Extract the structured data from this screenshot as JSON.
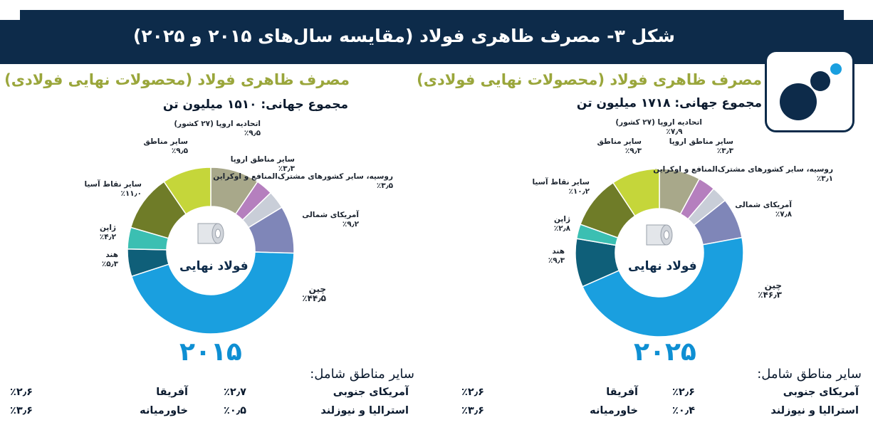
{
  "header": {
    "title": "شکل ۳- مصرف ظاهری فولاد (مقایسه سال‌های ۲۰۱۵ و ۲۰۲۵)"
  },
  "colors": {
    "navy": "#0d2b4a",
    "olive_title": "#9aa63b",
    "year_blue": "#0e8fd3"
  },
  "chart_data": [
    {
      "type": "pie",
      "variant": "donut",
      "year_label": "۲۰۲۵",
      "title": "مصرف ظاهری فولاد (محصولات نهایی فولادی)",
      "subtitle": "مجموع جهانی: ۱۷۱۸ میلیون تن",
      "center_label": "فولاد نهایی",
      "slices": [
        {
          "name": "اتحادیه اروپا (۲۷ کشور)",
          "value": 7.9,
          "label": "٪۷٫۹",
          "color": "#a8a88a"
        },
        {
          "name": "سایر مناطق اروپا",
          "value": 3.3,
          "label": "٪۳٫۳",
          "color": "#b57fbe"
        },
        {
          "name": "روسیه، سایر کشورهای مشترک‌المنافع و اوکراین",
          "value": 3.1,
          "label": "٪۳٫۱",
          "color": "#c9ced8"
        },
        {
          "name": "آمریکای شمالی",
          "value": 7.8,
          "label": "٪۷٫۸",
          "color": "#7f86b8"
        },
        {
          "name": "چین",
          "value": 46.3,
          "label": "٪۴۶٫۳",
          "color": "#1a9fdf"
        },
        {
          "name": "هند",
          "value": 9.3,
          "label": "٪۹٫۳",
          "color": "#0f5f79"
        },
        {
          "name": "ژاپن",
          "value": 2.8,
          "label": "٪۲٫۸",
          "color": "#3bbfb2"
        },
        {
          "name": "سایر نقاط آسیا",
          "value": 10.2,
          "label": "٪۱۰٫۲",
          "color": "#6f7c28"
        },
        {
          "name": "سایر مناطق",
          "value": 9.3,
          "label": "٪۹٫۳",
          "color": "#c5d63a"
        }
      ],
      "other_regions": {
        "heading": "سایر مناطق شامل:",
        "rows": [
          {
            "region_a": "آمریکای جنوبی",
            "value_a": "٪۲٫۶",
            "region_b": "آفریقا",
            "value_b": "٪۲٫۶"
          },
          {
            "region_a": "استرالیا و نیوزلند",
            "value_a": "٪۰٫۴",
            "region_b": "خاورمیانه",
            "value_b": "٪۳٫۶"
          }
        ]
      }
    },
    {
      "type": "pie",
      "variant": "donut",
      "year_label": "۲۰۱۵",
      "title": "مصرف ظاهری فولاد (محصولات نهایی فولادی)",
      "subtitle": "مجموع جهانی: ۱۵۱۰ میلیون تن",
      "center_label": "فولاد نهایی",
      "slices": [
        {
          "name": "اتحادیه اروپا (۲۷ کشور)",
          "value": 9.5,
          "label": "٪۹٫۵",
          "color": "#a8a88a"
        },
        {
          "name": "سایر مناطق اروپا",
          "value": 3.3,
          "label": "٪۳٫۳",
          "color": "#b57fbe"
        },
        {
          "name": "روسیه، سایر کشورهای مشترک‌المنافع و اوکراین",
          "value": 3.5,
          "label": "٪۳٫۵",
          "color": "#c9ced8"
        },
        {
          "name": "آمریکای شمالی",
          "value": 9.2,
          "label": "٪۹٫۲",
          "color": "#7f86b8"
        },
        {
          "name": "چین",
          "value": 44.5,
          "label": "٪۴۴٫۵",
          "color": "#1a9fdf"
        },
        {
          "name": "هند",
          "value": 5.3,
          "label": "٪۵٫۳",
          "color": "#0f5f79"
        },
        {
          "name": "ژاپن",
          "value": 4.2,
          "label": "٪۴٫۲",
          "color": "#3bbfb2"
        },
        {
          "name": "سایر نقاط آسیا",
          "value": 11.0,
          "label": "٪۱۱٫۰",
          "color": "#6f7c28"
        },
        {
          "name": "سایر مناطق",
          "value": 9.5,
          "label": "٪۹٫۵",
          "color": "#c5d63a"
        }
      ],
      "other_regions": {
        "heading": "سایر مناطق شامل:",
        "rows": [
          {
            "region_a": "آمریکای جنوبی",
            "value_a": "٪۲٫۷",
            "region_b": "آفریقا",
            "value_b": "٪۲٫۶"
          },
          {
            "region_a": "استرالیا و نیوزلند",
            "value_a": "٪۰٫۵",
            "region_b": "خاورمیانه",
            "value_b": "٪۳٫۶"
          }
        ]
      }
    }
  ]
}
